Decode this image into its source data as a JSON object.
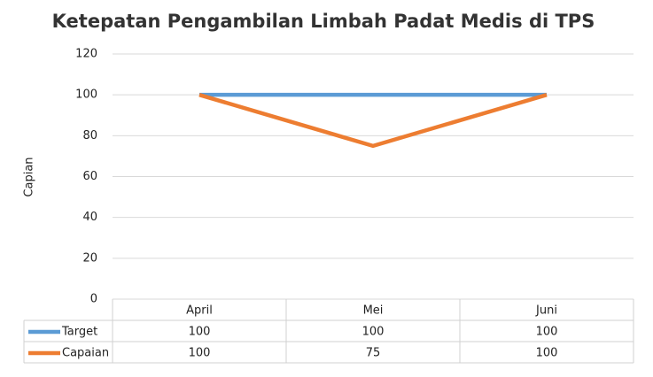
{
  "chart_data": {
    "type": "line",
    "title": "Ketepatan Pengambilan Limbah Padat Medis di TPS",
    "y_label": "Capian",
    "categories": [
      "April",
      "Mei",
      "Juni"
    ],
    "series": [
      {
        "name": "Target",
        "color": "#5b9bd5",
        "values": [
          100,
          100,
          100
        ]
      },
      {
        "name": "Capaian",
        "color": "#ed7d31",
        "values": [
          100,
          75,
          100
        ]
      }
    ],
    "ylim": [
      0,
      120
    ],
    "yticks": [
      0,
      20,
      40,
      60,
      80,
      100,
      120
    ],
    "grid": true,
    "data_table": true
  }
}
